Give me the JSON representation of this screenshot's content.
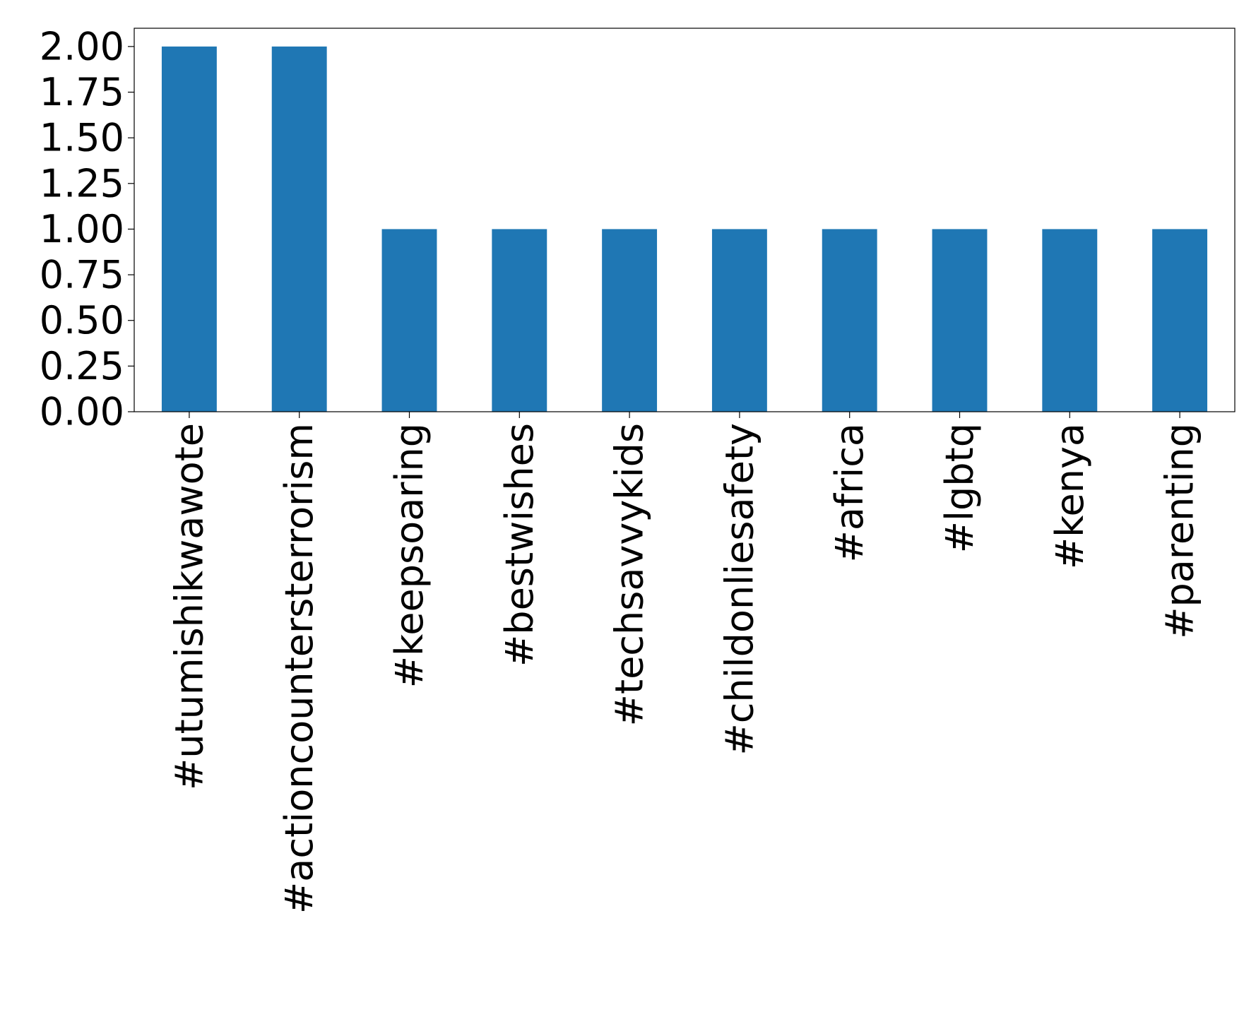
{
  "chart_data": {
    "type": "bar",
    "categories": [
      "#utumishikwawote",
      "#actioncountersterrorism",
      "#keepsoaring",
      "#bestwishes",
      "#techsavvykids",
      "#childonliesafety",
      "#africa",
      "#lgbtq",
      "#kenya",
      "#parenting"
    ],
    "values": [
      2,
      2,
      1,
      1,
      1,
      1,
      1,
      1,
      1,
      1
    ],
    "ylim": [
      0,
      2.1
    ],
    "yticks": [
      "0.00",
      "0.25",
      "0.50",
      "0.75",
      "1.00",
      "1.25",
      "1.50",
      "1.75",
      "2.00"
    ],
    "ytick_values": [
      0,
      0.25,
      0.5,
      0.75,
      1.0,
      1.25,
      1.5,
      1.75,
      2.0
    ],
    "title": "",
    "xlabel": "",
    "ylabel": "",
    "grid": false,
    "legend": "none",
    "bar_color": "#1f77b4",
    "xtick_rotation": "vertical"
  }
}
